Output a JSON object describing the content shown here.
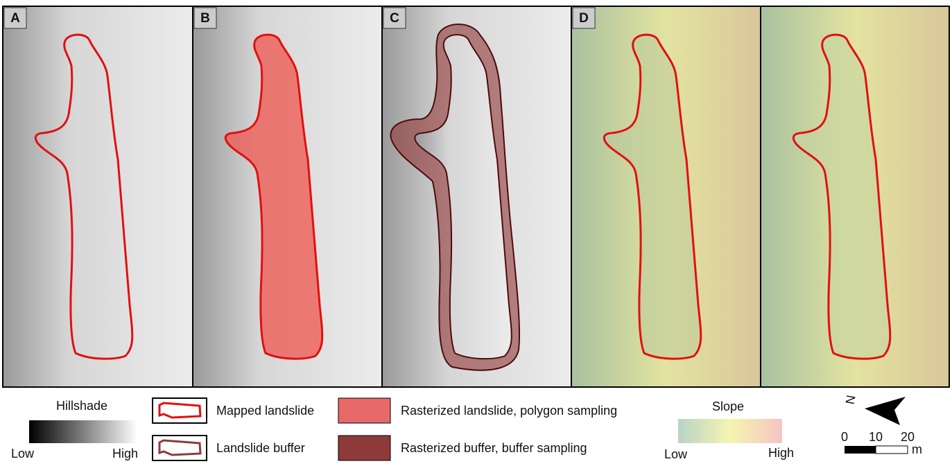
{
  "panels": [
    {
      "label": "A"
    },
    {
      "label": "B"
    },
    {
      "label": "C"
    },
    {
      "label": "D"
    }
  ],
  "legend": {
    "hillshade": {
      "title": "Hillshade",
      "low": "Low",
      "high": "High"
    },
    "mapped_landslide": "Mapped landslide",
    "landslide_buffer": "Landslide buffer",
    "rasterized_landslide": "Rasterized landslide, polygon sampling",
    "rasterized_buffer": "Rasterized buffer, buffer sampling",
    "slope": {
      "title": "Slope",
      "low": "Low",
      "high": "High"
    },
    "north": "N",
    "scale": {
      "ticks": [
        "0",
        "10",
        "20"
      ],
      "unit": "m"
    }
  }
}
